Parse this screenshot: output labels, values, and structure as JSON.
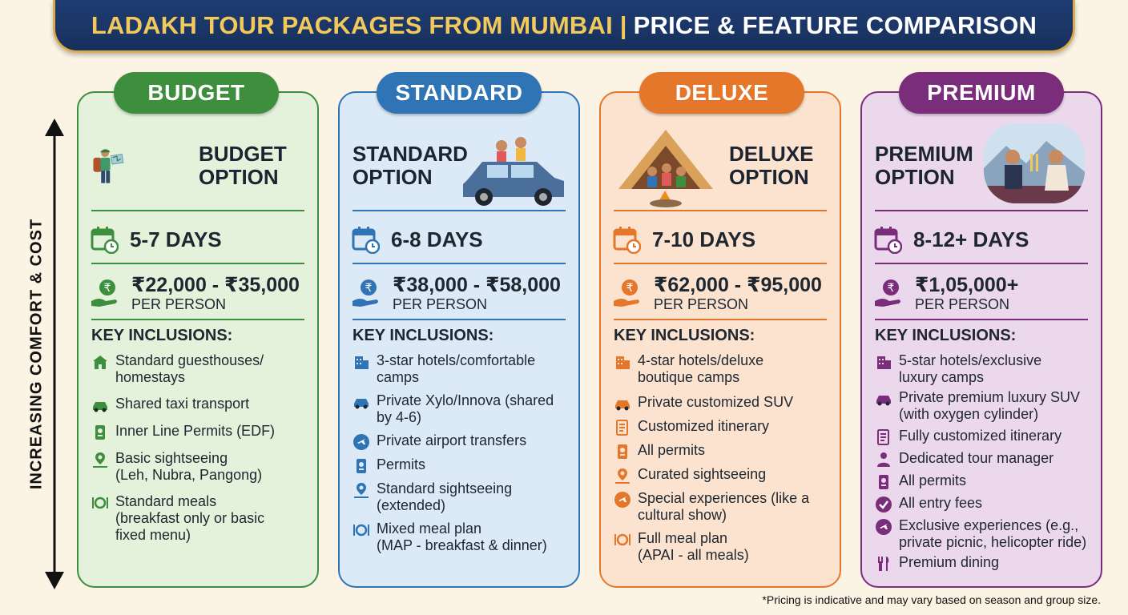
{
  "title": {
    "part1": "LADAKH TOUR PACKAGES FROM MUMBAI |",
    "part2": "PRICE & FEATURE COMPARISON"
  },
  "axis_label": "INCREASING COMFORT & COST",
  "footnote": "*Pricing is indicative and may vary based on season and group size.",
  "colors": {
    "budget": "#3d8f3d",
    "standard": "#2f74b5",
    "deluxe": "#e5772a",
    "premium": "#7a2d7a",
    "banner": "#1f3d73",
    "banner_gold": "#f2c95b"
  },
  "tiers": [
    {
      "pill": "BUDGET",
      "option_line1": "BUDGET",
      "option_line2": "OPTION",
      "days": "5-7 DAYS",
      "price": "₹22,000 - ₹35,000",
      "per_person": "PER PERSON",
      "inclusions_heading": "KEY INCLUSIONS:",
      "inclusions": [
        {
          "icon": "guesthouse-icon",
          "l1": "Standard guesthouses/",
          "l2": "homestays"
        },
        {
          "icon": "taxi-icon",
          "l1": "Shared taxi transport",
          "l2": ""
        },
        {
          "icon": "permit-icon",
          "l1": "Inner Line Permits (EDF)",
          "l2": ""
        },
        {
          "icon": "sightseeing-icon",
          "l1": "Basic sightseeing",
          "l2": "(Leh, Nubra, Pangong)"
        },
        {
          "icon": "meal-icon",
          "l1": "Standard meals",
          "l2": "(breakfast only or basic",
          "l3": "fixed menu)"
        }
      ]
    },
    {
      "pill": "STANDARD",
      "option_line1": "STANDARD",
      "option_line2": "OPTION",
      "days": "6-8 DAYS",
      "price": "₹38,000 - ₹58,000",
      "per_person": "PER PERSON",
      "inclusions_heading": "KEY INCLUSIONS:",
      "inclusions": [
        {
          "icon": "hotel-icon",
          "l1": "3-star hotels/comfortable",
          "l2": "camps"
        },
        {
          "icon": "car-icon",
          "l1": "Private Xylo/Innova (shared",
          "l2": "by 4-6)"
        },
        {
          "icon": "airplane-icon",
          "l1": "Private airport transfers",
          "l2": ""
        },
        {
          "icon": "permit-icon",
          "l1": "Permits",
          "l2": ""
        },
        {
          "icon": "sightseeing-icon",
          "l1": "Standard sightseeing",
          "l2": "(extended)"
        },
        {
          "icon": "meal-icon",
          "l1": "Mixed meal plan",
          "l2": "(MAP - breakfast & dinner)"
        }
      ]
    },
    {
      "pill": "DELUXE",
      "option_line1": "DELUXE",
      "option_line2": "OPTION",
      "days": "7-10 DAYS",
      "price": "₹62,000 - ₹95,000",
      "per_person": "PER PERSON",
      "inclusions_heading": "KEY INCLUSIONS:",
      "inclusions": [
        {
          "icon": "hotel-icon",
          "l1": "4-star hotels/deluxe",
          "l2": "boutique camps"
        },
        {
          "icon": "suv-icon",
          "l1": "Private customized SUV",
          "l2": ""
        },
        {
          "icon": "itinerary-icon",
          "l1": "Customized itinerary",
          "l2": ""
        },
        {
          "icon": "permit-icon",
          "l1": "All permits",
          "l2": ""
        },
        {
          "icon": "sightseeing-icon",
          "l1": "Curated sightseeing",
          "l2": ""
        },
        {
          "icon": "airplane-icon",
          "l1": "Special experiences (like a",
          "l2": "cultural show)"
        },
        {
          "icon": "meal-icon",
          "l1": "Full meal plan",
          "l2": "(APAI - all meals)"
        }
      ]
    },
    {
      "pill": "PREMIUM",
      "option_line1": "PREMIUM",
      "option_line2": "OPTION",
      "days": "8-12+ DAYS",
      "price": "₹1,05,000+",
      "per_person": "PER PERSON",
      "inclusions_heading": "KEY INCLUSIONS:",
      "inclusions": [
        {
          "icon": "hotel-icon",
          "l1": "5-star hotels/exclusive",
          "l2": "luxury camps"
        },
        {
          "icon": "suv-icon",
          "l1": "Private premium luxury SUV",
          "l2": "(with oxygen cylinder)"
        },
        {
          "icon": "itinerary-icon",
          "l1": "Fully customized itinerary",
          "l2": ""
        },
        {
          "icon": "manager-icon",
          "l1": "Dedicated tour manager",
          "l2": ""
        },
        {
          "icon": "permit-icon",
          "l1": "All permits",
          "l2": ""
        },
        {
          "icon": "check-icon",
          "l1": "All entry fees",
          "l2": ""
        },
        {
          "icon": "airplane-icon",
          "l1": "Exclusive experiences (e.g.,",
          "l2": "private picnic, helicopter ride)"
        },
        {
          "icon": "dining-icon",
          "l1": "Premium dining",
          "l2": ""
        }
      ]
    }
  ]
}
